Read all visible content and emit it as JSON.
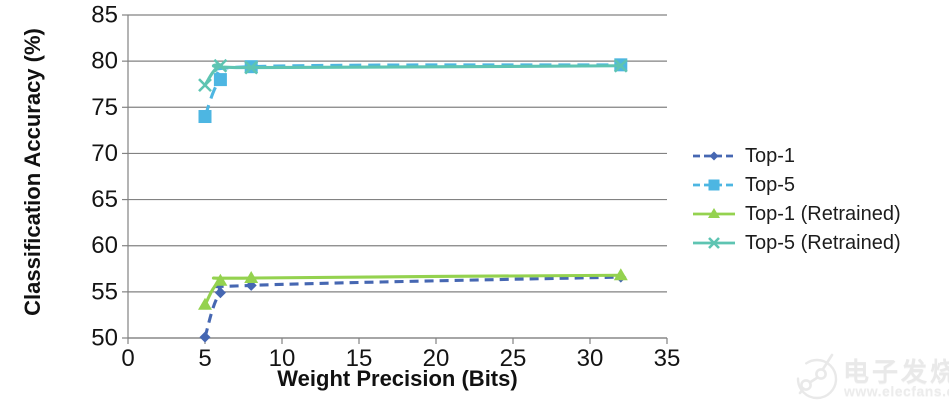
{
  "chart_data": {
    "type": "line",
    "title": "",
    "xlabel": "Weight Precision (Bits)",
    "ylabel": "Classification Accuracy (%)",
    "xlim": [
      0,
      35
    ],
    "ylim": [
      50,
      85
    ],
    "xticks": [
      0,
      5,
      10,
      15,
      20,
      25,
      30,
      35
    ],
    "yticks": [
      50,
      55,
      60,
      65,
      70,
      75,
      80,
      85
    ],
    "grid": "horizontal",
    "legend_position": "right",
    "x": [
      5,
      6,
      8,
      32
    ],
    "series": [
      {
        "name": "Top-1",
        "color": "#4667b2",
        "style": "dashed",
        "marker": "diamond",
        "values": [
          50.1,
          54.9,
          55.7,
          56.6
        ]
      },
      {
        "name": "Top-5",
        "color": "#4db6e2",
        "style": "dashed",
        "marker": "square",
        "values": [
          74.0,
          78.0,
          79.4,
          79.6
        ]
      },
      {
        "name": "Top-1 (Retrained)",
        "color": "#94d24f",
        "style": "solid",
        "marker": "triangle",
        "values": [
          53.6,
          56.2,
          56.5,
          56.8
        ]
      },
      {
        "name": "Top-5 (Retrained)",
        "color": "#5ec4b2",
        "style": "solid",
        "marker": "x",
        "values": [
          77.4,
          79.5,
          79.3,
          79.5
        ]
      }
    ],
    "axis_color": "#828282",
    "text_color": "#141414"
  },
  "watermark": {
    "brand": "电子发烧友",
    "url": "www.elecfans.com"
  }
}
